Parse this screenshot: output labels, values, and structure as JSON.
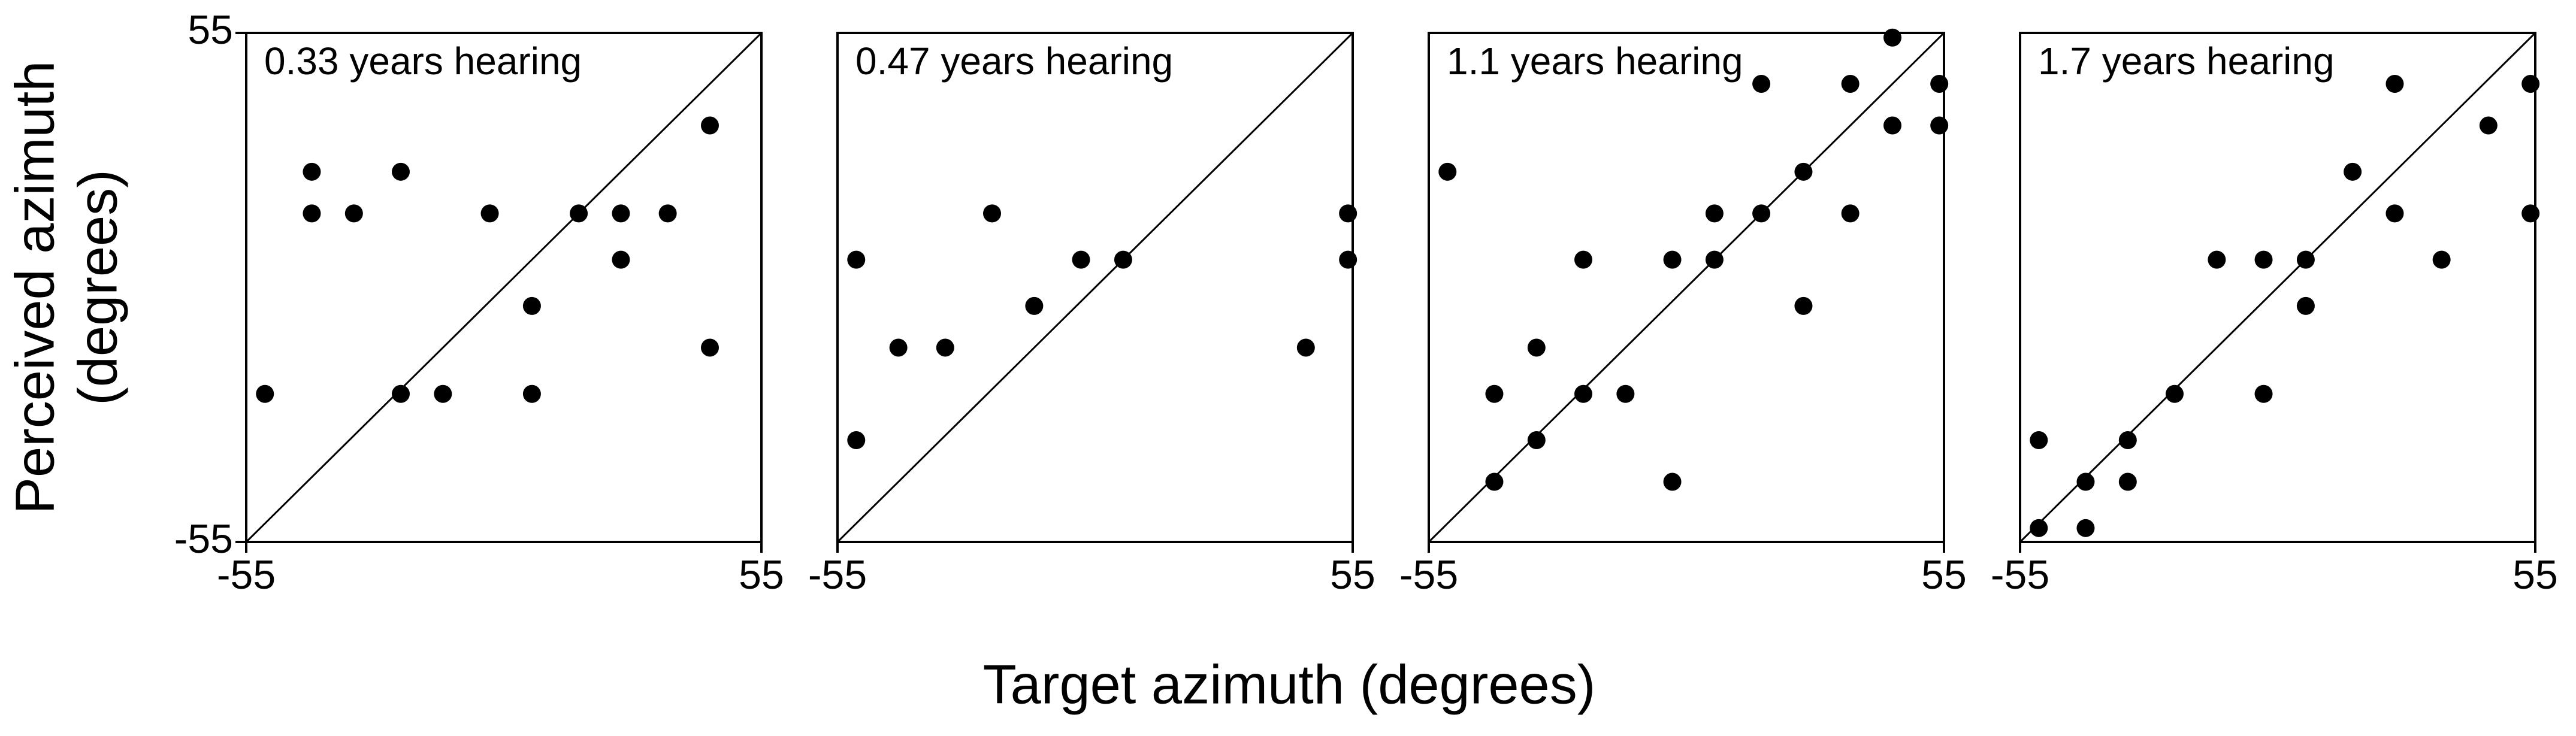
{
  "axis_labels": {
    "x": "Target azimuth (degrees)",
    "y": [
      "Perceived azimuth",
      "(degrees)"
    ]
  },
  "chart_data": [
    {
      "type": "scatter",
      "title": "0.33 years hearing",
      "color": "#000000",
      "x": [
        -51,
        -41,
        -41,
        -32,
        -22,
        -22,
        -13,
        -3,
        6,
        6,
        16,
        25,
        25,
        35,
        44,
        44
      ],
      "y": [
        -23,
        25,
        16,
        16,
        25,
        -23,
        -23,
        16,
        -4,
        -23,
        16,
        16,
        6,
        16,
        35,
        -13
      ],
      "xlim": [
        -55,
        55
      ],
      "ylim": [
        -55,
        55
      ],
      "xticks": [
        -55,
        55
      ],
      "yticks": [
        -55,
        55
      ]
    },
    {
      "type": "scatter",
      "title": "0.47 years hearing",
      "color": "#000000",
      "x": [
        -51,
        -51,
        -42,
        -32,
        -22,
        -13,
        -3,
        6,
        45,
        54,
        54
      ],
      "y": [
        6,
        -33,
        -13,
        -13,
        16,
        -4,
        6,
        6,
        -13,
        16,
        6
      ],
      "xlim": [
        -55,
        55
      ],
      "ylim": [
        -55,
        55
      ],
      "xticks": [
        -55,
        55
      ]
    },
    {
      "type": "scatter",
      "title": "1.1 years hearing",
      "color": "#000000",
      "x": [
        -51,
        -41,
        -41,
        -32,
        -32,
        -22,
        -22,
        -13,
        -3,
        -3,
        6,
        6,
        16,
        16,
        25,
        25,
        35,
        35,
        44,
        44,
        54,
        54
      ],
      "y": [
        25,
        -23,
        -42,
        -13,
        -33,
        6,
        -23,
        -23,
        6,
        -42,
        16,
        6,
        44,
        16,
        25,
        -4,
        44,
        16,
        54,
        35,
        44,
        35
      ],
      "xlim": [
        -55,
        55
      ],
      "ylim": [
        -55,
        55
      ],
      "xticks": [
        -55,
        55
      ]
    },
    {
      "type": "scatter",
      "title": "1.7 years hearing",
      "color": "#000000",
      "x": [
        -51,
        -51,
        -41,
        -41,
        -32,
        -32,
        -22,
        -13,
        -3,
        -3,
        6,
        6,
        16,
        25,
        25,
        35,
        45,
        54,
        54
      ],
      "y": [
        -33,
        -52,
        -42,
        -52,
        -33,
        -42,
        -23,
        6,
        6,
        -23,
        6,
        -4,
        25,
        44,
        16,
        6,
        35,
        44,
        16
      ],
      "xlim": [
        -55,
        55
      ],
      "ylim": [
        -55,
        55
      ],
      "xticks": [
        -55,
        55
      ]
    }
  ]
}
